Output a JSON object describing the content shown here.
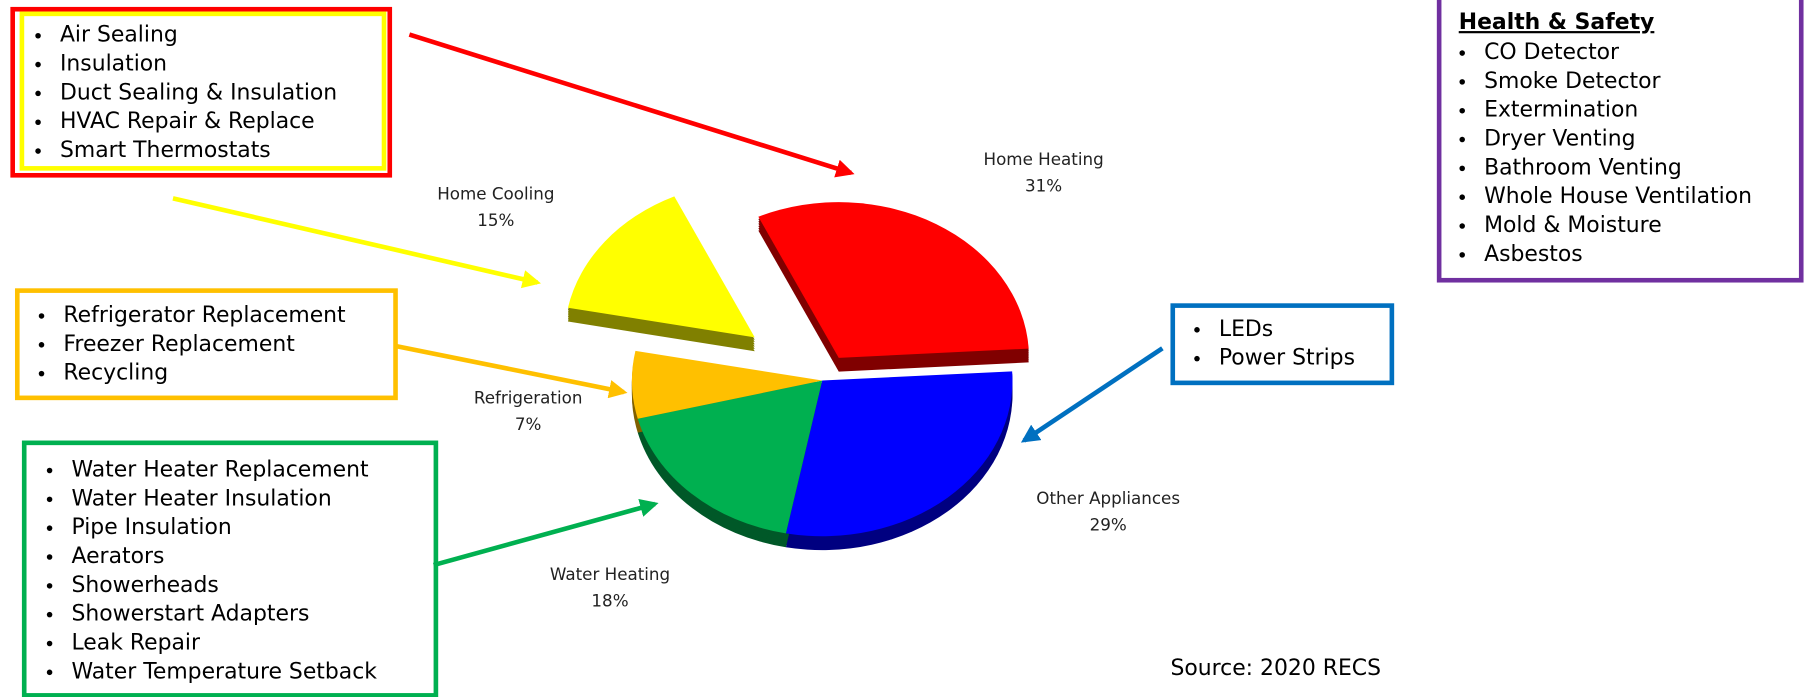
{
  "chart_data": {
    "type": "pie",
    "categories": [
      "Home Heating",
      "Other Appliances",
      "Water Heating",
      "Refrigeration",
      "Home Cooling"
    ],
    "values": [
      31,
      29,
      18,
      7,
      15
    ],
    "value_labels": [
      "31%",
      "29%",
      "18%",
      "7%",
      "15%"
    ],
    "colors": [
      "#ff0000",
      "#0000ff",
      "#00b050",
      "#ffc000",
      "#ffff00"
    ],
    "explode": [
      0.17,
      0,
      0,
      0,
      0.45
    ]
  },
  "callouts": [
    {
      "items": [
        "Air Sealing",
        "Insulation",
        "Duct Sealing & Insulation",
        "HVAC Repair & Replace",
        "Smart Thermostats"
      ]
    },
    {
      "items": [
        "Refrigerator Replacement",
        "Freezer Replacement",
        "Recycling"
      ]
    },
    {
      "items": [
        "Water Heater Replacement",
        "Water Heater Insulation",
        "Pipe Insulation",
        "Aerators",
        "Showerheads",
        "Showerstart Adapters",
        "Leak Repair",
        "Water Temperature Setback"
      ]
    },
    {
      "items": [
        "LEDs",
        "Power Strips"
      ]
    },
    {
      "heading": "Health & Safety",
      "items": [
        "CO Detector",
        "Smoke Detector",
        "Extermination",
        "Dryer Venting",
        "Bathroom Venting",
        "Whole House Ventilation",
        "Mold & Moisture",
        "Asbestos"
      ]
    }
  ],
  "source": "Source: 2020 RECS"
}
